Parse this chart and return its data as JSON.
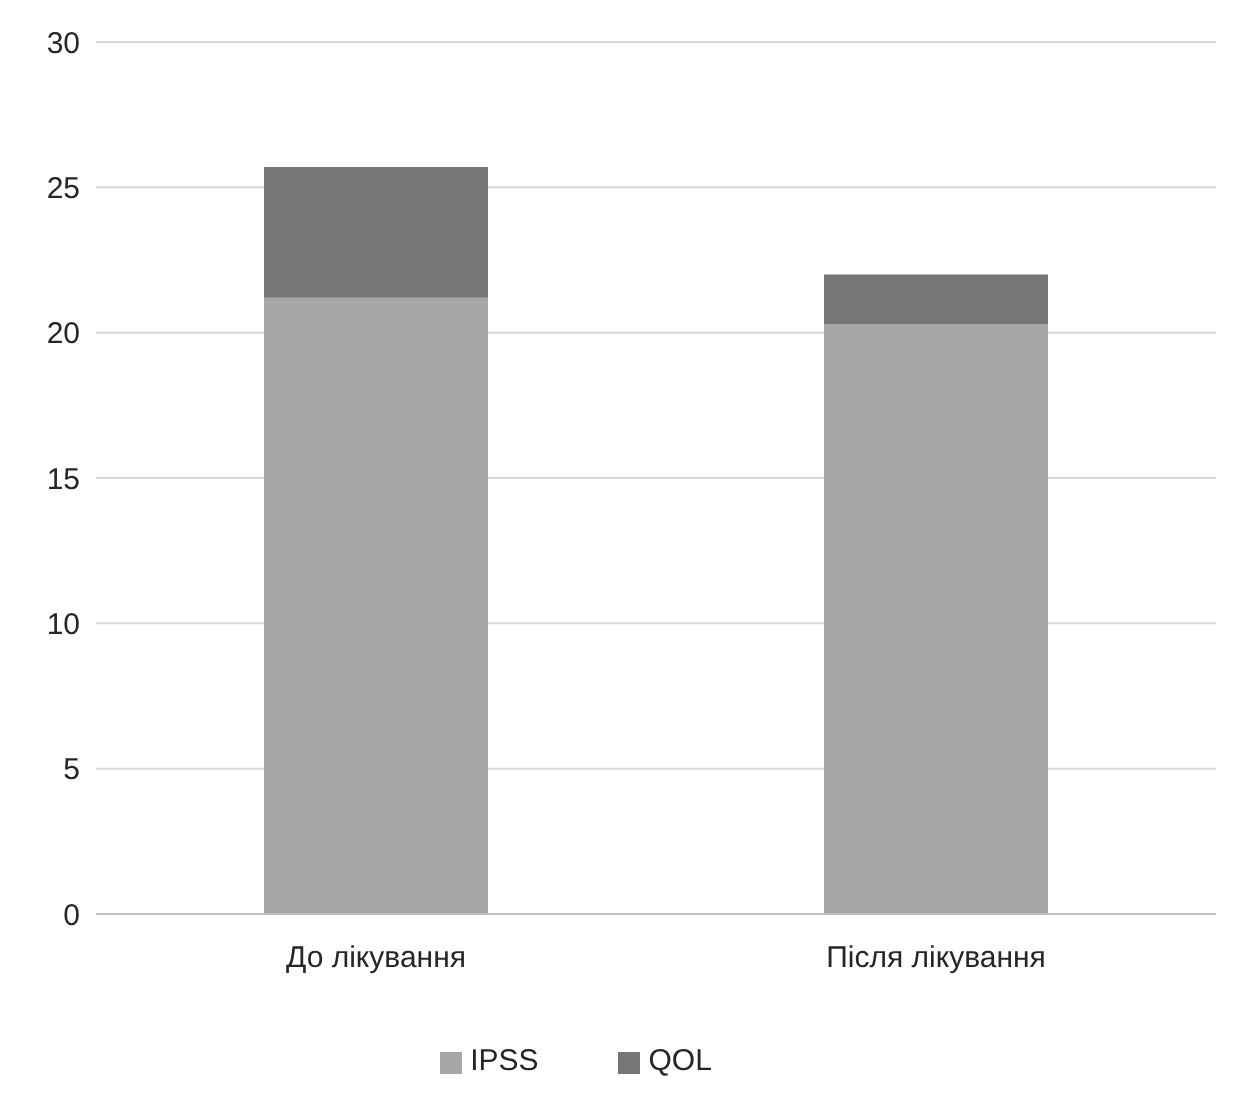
{
  "chart_data": {
    "type": "bar",
    "stacked": true,
    "categories": [
      "До лікування",
      "Після лікування"
    ],
    "series": [
      {
        "name": "IPSS",
        "color": "#a6a6a7",
        "values": [
          21.2,
          20.3
        ]
      },
      {
        "name": "QOL",
        "color": "#767678",
        "values": [
          4.5,
          1.7
        ]
      }
    ],
    "ylim": [
      0,
      30
    ],
    "yticks": [
      0,
      5,
      10,
      15,
      20,
      25,
      30
    ],
    "grid": "y",
    "legend": "bottom"
  }
}
